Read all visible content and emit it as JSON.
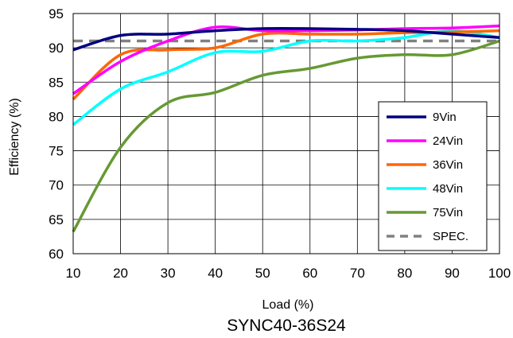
{
  "chart_data": {
    "type": "line",
    "title": "SYNC40-36S24",
    "xlabel": "Load (%)",
    "ylabel": "Efficiency (%)",
    "xlim": [
      10,
      100
    ],
    "ylim": [
      60,
      95
    ],
    "xticks": [
      10,
      20,
      30,
      40,
      50,
      60,
      70,
      80,
      90,
      100
    ],
    "yticks": [
      60,
      65,
      70,
      75,
      80,
      85,
      90,
      95
    ],
    "grid": true,
    "legend_position": "bottom-right",
    "x": [
      10,
      20,
      30,
      40,
      50,
      60,
      70,
      80,
      90,
      100
    ],
    "series": [
      {
        "name": "9Vin",
        "color": "#000080",
        "style": "solid",
        "values": [
          89.7,
          91.8,
          92.0,
          92.5,
          92.8,
          92.8,
          92.7,
          92.5,
          92.0,
          91.5
        ]
      },
      {
        "name": "24Vin",
        "color": "#ff00ff",
        "style": "solid",
        "values": [
          83.3,
          88.0,
          91.0,
          93.0,
          92.5,
          92.5,
          92.6,
          92.8,
          92.9,
          93.2
        ]
      },
      {
        "name": "36Vin",
        "color": "#ff6600",
        "style": "solid",
        "values": [
          82.5,
          89.0,
          89.7,
          90.0,
          92.0,
          92.0,
          92.0,
          92.2,
          92.3,
          92.5
        ]
      },
      {
        "name": "48Vin",
        "color": "#00ffff",
        "style": "solid",
        "values": [
          78.8,
          84.0,
          86.5,
          89.3,
          89.5,
          91.0,
          91.0,
          91.5,
          92.5,
          91.5
        ]
      },
      {
        "name": "75Vin",
        "color": "#669933",
        "style": "solid",
        "values": [
          63.2,
          75.5,
          82.0,
          83.5,
          86.0,
          87.0,
          88.5,
          89.0,
          89.0,
          91.0
        ]
      },
      {
        "name": "SPEC.",
        "color": "#808080",
        "style": "dashed",
        "values": [
          91.0,
          91.0,
          91.0,
          91.0,
          91.0,
          91.0,
          91.0,
          91.0,
          91.0,
          91.0
        ]
      }
    ]
  }
}
